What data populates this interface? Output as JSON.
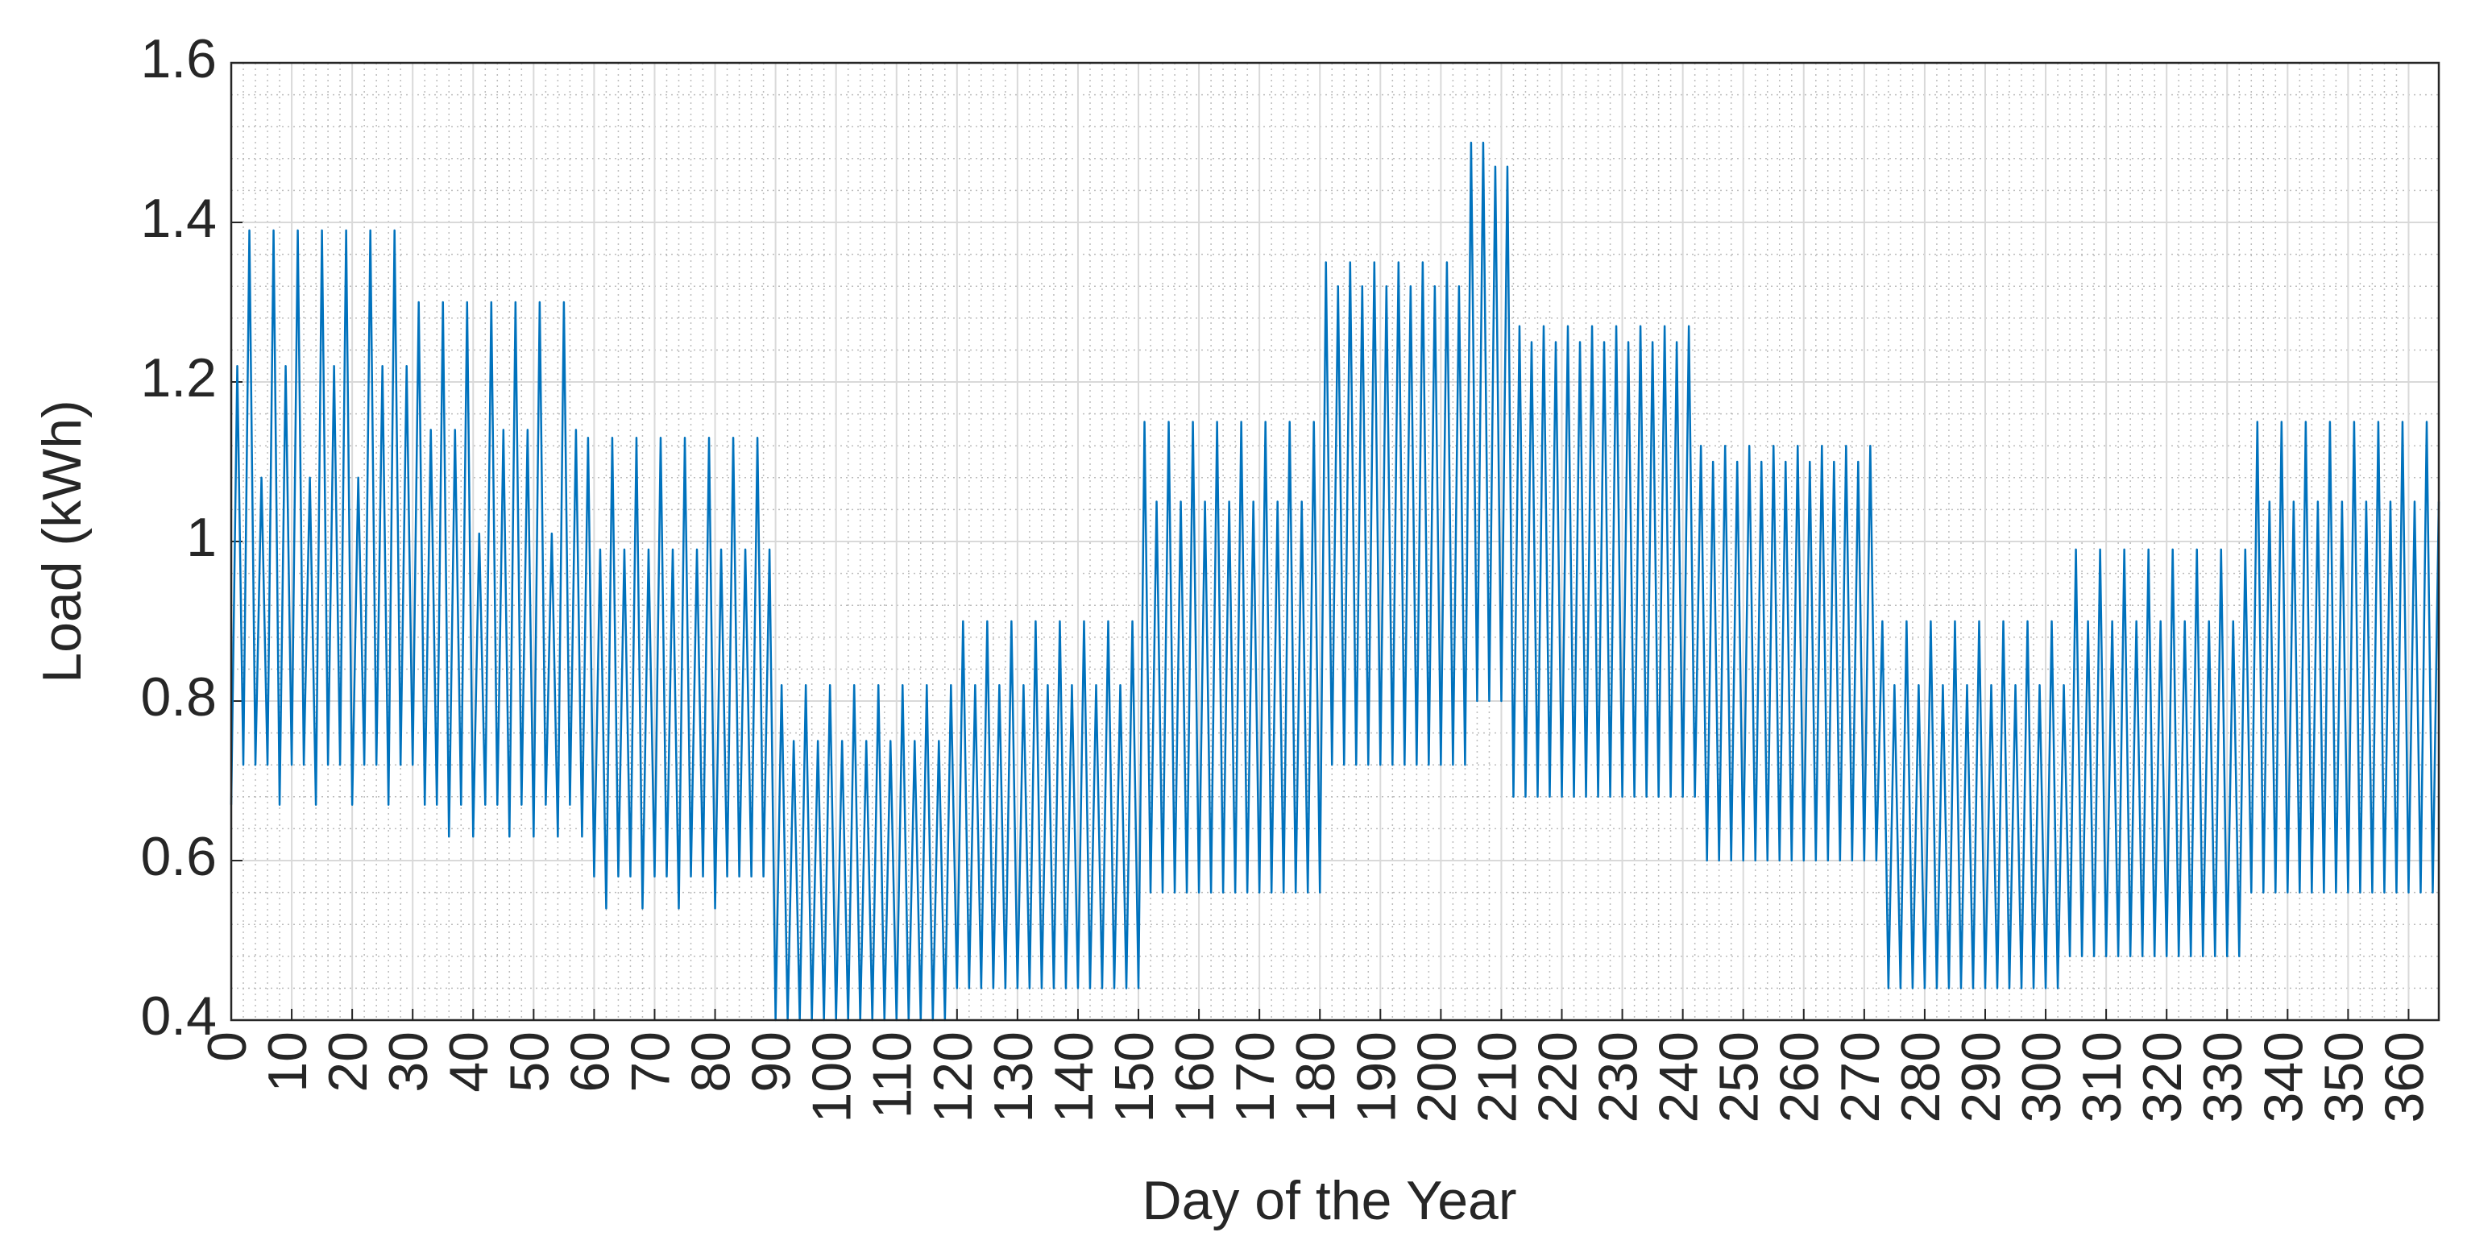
{
  "chart_data": {
    "type": "line",
    "xlabel": "Day of the Year",
    "ylabel": "Load (kWh)",
    "xlim": [
      0,
      365
    ],
    "ylim": [
      0.4,
      1.6
    ],
    "xticks": [
      0,
      10,
      20,
      30,
      40,
      50,
      60,
      70,
      80,
      90,
      100,
      110,
      120,
      130,
      140,
      150,
      160,
      170,
      180,
      190,
      200,
      210,
      220,
      230,
      240,
      250,
      260,
      270,
      280,
      290,
      300,
      310,
      320,
      330,
      340,
      350,
      360
    ],
    "yticks": [
      0.4,
      0.6,
      0.8,
      1,
      1.2,
      1.4,
      1.6
    ],
    "grid": true,
    "minor_grid": true,
    "x": [
      0,
      1,
      2,
      3,
      4,
      5,
      6,
      7,
      8,
      9,
      10,
      11,
      12,
      13,
      14,
      15,
      16,
      17,
      18,
      19,
      20,
      21,
      22,
      23,
      24,
      25,
      26,
      27,
      28,
      29,
      30,
      31,
      32,
      33,
      34,
      35,
      36,
      37,
      38,
      39,
      40,
      41,
      42,
      43,
      44,
      45,
      46,
      47,
      48,
      49,
      50,
      51,
      52,
      53,
      54,
      55,
      56,
      57,
      58,
      59,
      60,
      61,
      62,
      63,
      64,
      65,
      66,
      67,
      68,
      69,
      70,
      71,
      72,
      73,
      74,
      75,
      76,
      77,
      78,
      79,
      80,
      81,
      82,
      83,
      84,
      85,
      86,
      87,
      88,
      89,
      90,
      91,
      92,
      93,
      94,
      95,
      96,
      97,
      98,
      99,
      100,
      101,
      102,
      103,
      104,
      105,
      106,
      107,
      108,
      109,
      110,
      111,
      112,
      113,
      114,
      115,
      116,
      117,
      118,
      119,
      120,
      121,
      122,
      123,
      124,
      125,
      126,
      127,
      128,
      129,
      130,
      131,
      132,
      133,
      134,
      135,
      136,
      137,
      138,
      139,
      140,
      141,
      142,
      143,
      144,
      145,
      146,
      147,
      148,
      149,
      150,
      151,
      152,
      153,
      154,
      155,
      156,
      157,
      158,
      159,
      160,
      161,
      162,
      163,
      164,
      165,
      166,
      167,
      168,
      169,
      170,
      171,
      172,
      173,
      174,
      175,
      176,
      177,
      178,
      179,
      180,
      181,
      182,
      183,
      184,
      185,
      186,
      187,
      188,
      189,
      190,
      191,
      192,
      193,
      194,
      195,
      196,
      197,
      198,
      199,
      200,
      201,
      202,
      203,
      204,
      205,
      206,
      207,
      208,
      209,
      210,
      211,
      212,
      213,
      214,
      215,
      216,
      217,
      218,
      219,
      220,
      221,
      222,
      223,
      224,
      225,
      226,
      227,
      228,
      229,
      230,
      231,
      232,
      233,
      234,
      235,
      236,
      237,
      238,
      239,
      240,
      241,
      242,
      243,
      244,
      245,
      246,
      247,
      248,
      249,
      250,
      251,
      252,
      253,
      254,
      255,
      256,
      257,
      258,
      259,
      260,
      261,
      262,
      263,
      264,
      265,
      266,
      267,
      268,
      269,
      270,
      271,
      272,
      273,
      274,
      275,
      276,
      277,
      278,
      279,
      280,
      281,
      282,
      283,
      284,
      285,
      286,
      287,
      288,
      289,
      290,
      291,
      292,
      293,
      294,
      295,
      296,
      297,
      298,
      299,
      300,
      301,
      302,
      303,
      304,
      305,
      306,
      307,
      308,
      309,
      310,
      311,
      312,
      313,
      314,
      315,
      316,
      317,
      318,
      319,
      320,
      321,
      322,
      323,
      324,
      325,
      326,
      327,
      328,
      329,
      330,
      331,
      332,
      333,
      334,
      335,
      336,
      337,
      338,
      339,
      340,
      341,
      342,
      343,
      344,
      345,
      346,
      347,
      348,
      349,
      350,
      351,
      352,
      353,
      354,
      355,
      356,
      357,
      358,
      359,
      360,
      361,
      362,
      363,
      364,
      365
    ],
    "series": [
      {
        "color": "#0072bd",
        "values": [
          0.67,
          1.22,
          0.72,
          1.39,
          0.72,
          1.08,
          0.72,
          1.39,
          0.67,
          1.22,
          0.72,
          1.39,
          0.72,
          1.08,
          0.67,
          1.39,
          0.72,
          1.22,
          0.72,
          1.39,
          0.67,
          1.08,
          0.72,
          1.39,
          0.72,
          1.22,
          0.67,
          1.39,
          0.72,
          1.22,
          0.72,
          1.3,
          0.67,
          1.14,
          0.67,
          1.3,
          0.63,
          1.14,
          0.67,
          1.3,
          0.63,
          1.01,
          0.67,
          1.3,
          0.67,
          1.14,
          0.63,
          1.3,
          0.67,
          1.14,
          0.63,
          1.3,
          0.67,
          1.01,
          0.63,
          1.3,
          0.67,
          1.14,
          0.63,
          1.13,
          0.58,
          0.99,
          0.54,
          1.13,
          0.58,
          0.99,
          0.58,
          1.13,
          0.54,
          0.99,
          0.58,
          1.13,
          0.58,
          0.99,
          0.54,
          1.13,
          0.58,
          0.99,
          0.58,
          1.13,
          0.54,
          0.99,
          0.58,
          1.13,
          0.58,
          0.99,
          0.58,
          1.13,
          0.58,
          0.99,
          0.4,
          0.82,
          0.4,
          0.75,
          0.4,
          0.82,
          0.4,
          0.75,
          0.4,
          0.82,
          0.4,
          0.75,
          0.4,
          0.82,
          0.4,
          0.75,
          0.4,
          0.82,
          0.4,
          0.75,
          0.4,
          0.82,
          0.4,
          0.75,
          0.4,
          0.82,
          0.4,
          0.75,
          0.4,
          0.82,
          0.44,
          0.9,
          0.44,
          0.82,
          0.44,
          0.9,
          0.44,
          0.82,
          0.44,
          0.9,
          0.44,
          0.82,
          0.44,
          0.9,
          0.44,
          0.82,
          0.44,
          0.9,
          0.44,
          0.82,
          0.44,
          0.9,
          0.44,
          0.82,
          0.44,
          0.9,
          0.44,
          0.82,
          0.44,
          0.9,
          0.44,
          1.15,
          0.56,
          1.05,
          0.56,
          1.15,
          0.56,
          1.05,
          0.56,
          1.15,
          0.56,
          1.05,
          0.56,
          1.15,
          0.56,
          1.05,
          0.56,
          1.15,
          0.56,
          1.05,
          0.56,
          1.15,
          0.56,
          1.05,
          0.56,
          1.15,
          0.56,
          1.05,
          0.56,
          1.15,
          0.56,
          1.35,
          0.72,
          1.32,
          0.72,
          1.35,
          0.72,
          1.32,
          0.72,
          1.35,
          0.72,
          1.32,
          0.72,
          1.35,
          0.72,
          1.32,
          0.72,
          1.35,
          0.72,
          1.32,
          0.72,
          1.35,
          0.72,
          1.32,
          0.72,
          1.5,
          0.8,
          1.5,
          0.8,
          1.47,
          0.8,
          1.47,
          0.68,
          1.27,
          0.68,
          1.25,
          0.68,
          1.27,
          0.68,
          1.25,
          0.68,
          1.27,
          0.68,
          1.25,
          0.68,
          1.27,
          0.68,
          1.25,
          0.68,
          1.27,
          0.68,
          1.25,
          0.68,
          1.27,
          0.68,
          1.25,
          0.68,
          1.27,
          0.68,
          1.25,
          0.68,
          1.27,
          0.68,
          1.12,
          0.6,
          1.1,
          0.6,
          1.12,
          0.6,
          1.1,
          0.6,
          1.12,
          0.6,
          1.1,
          0.6,
          1.12,
          0.6,
          1.1,
          0.6,
          1.12,
          0.6,
          1.1,
          0.6,
          1.12,
          0.6,
          1.1,
          0.6,
          1.12,
          0.6,
          1.1,
          0.6,
          1.12,
          0.6,
          0.9,
          0.44,
          0.82,
          0.44,
          0.9,
          0.44,
          0.82,
          0.44,
          0.9,
          0.44,
          0.82,
          0.44,
          0.9,
          0.44,
          0.82,
          0.44,
          0.9,
          0.44,
          0.82,
          0.44,
          0.9,
          0.44,
          0.82,
          0.44,
          0.9,
          0.44,
          0.82,
          0.44,
          0.9,
          0.44,
          0.82,
          0.48,
          0.99,
          0.48,
          0.9,
          0.48,
          0.99,
          0.48,
          0.9,
          0.48,
          0.99,
          0.48,
          0.9,
          0.48,
          0.99,
          0.48,
          0.9,
          0.48,
          0.99,
          0.48,
          0.9,
          0.48,
          0.99,
          0.48,
          0.9,
          0.48,
          0.99,
          0.48,
          0.9,
          0.48,
          0.99,
          0.56,
          1.15,
          0.56,
          1.05,
          0.56,
          1.15,
          0.56,
          1.05,
          0.56,
          1.15,
          0.56,
          1.05,
          0.56,
          1.15,
          0.56,
          1.05,
          0.56,
          1.15,
          0.56,
          1.05,
          0.56,
          1.15,
          0.56,
          1.05,
          0.56,
          1.15,
          0.56,
          1.05,
          0.56,
          1.15,
          0.56,
          1.05
        ]
      }
    ]
  }
}
